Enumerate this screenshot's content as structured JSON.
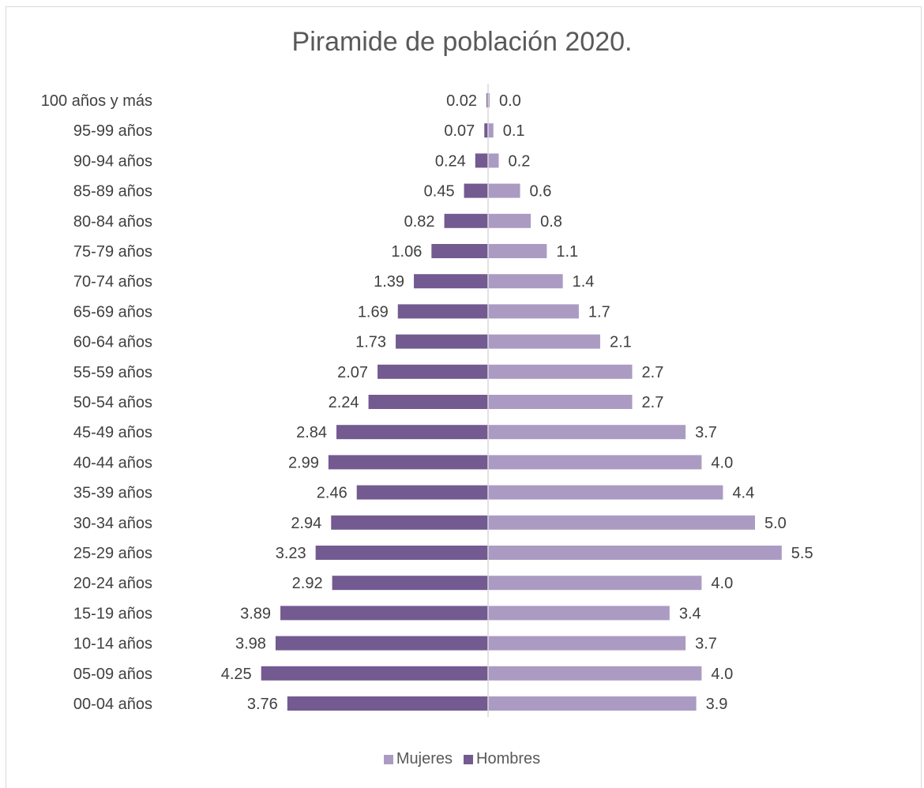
{
  "chart_data": {
    "type": "bar",
    "title": "Piramide de población 2020.",
    "orientation": "horizontal-pyramid",
    "categories": [
      "100 años y más",
      "95-99 años",
      "90-94 años",
      "85-89 años",
      "80-84 años",
      "75-79 años",
      "70-74 años",
      "65-69 años",
      "60-64 años",
      "55-59 años",
      "50-54 años",
      "45-49 años",
      "40-44 años",
      "35-39 años",
      "30-34 años",
      "25-29 años",
      "20-24 años",
      "15-19 años",
      "10-14 años",
      "05-09 años",
      "00-04 años"
    ],
    "series": [
      {
        "name": "Hombres",
        "side": "left",
        "color": "#735a91",
        "values": [
          0.02,
          0.07,
          0.24,
          0.45,
          0.82,
          1.06,
          1.39,
          1.69,
          1.73,
          2.07,
          2.24,
          2.84,
          2.99,
          2.46,
          2.94,
          3.23,
          2.92,
          3.89,
          3.98,
          4.25,
          3.76
        ],
        "labels": [
          "0.02",
          "0.07",
          "0.24",
          "0.45",
          "0.82",
          "1.06",
          "1.39",
          "1.69",
          "1.73",
          "2.07",
          "2.24",
          "2.84",
          "2.99",
          "2.46",
          "2.94",
          "3.23",
          "2.92",
          "3.89",
          "3.98",
          "4.25",
          "3.76"
        ]
      },
      {
        "name": "Mujeres",
        "side": "right",
        "color": "#ab9bc3",
        "values": [
          0.0,
          0.1,
          0.2,
          0.6,
          0.8,
          1.1,
          1.4,
          1.7,
          2.1,
          2.7,
          2.7,
          3.7,
          4.0,
          4.4,
          5.0,
          5.5,
          4.0,
          3.4,
          3.7,
          4.0,
          3.9
        ],
        "labels": [
          "0.0",
          "0.1",
          "0.2",
          "0.6",
          "0.8",
          "1.1",
          "1.4",
          "1.7",
          "2.1",
          "2.7",
          "2.7",
          "3.7",
          "4.0",
          "4.4",
          "5.0",
          "5.5",
          "4.0",
          "3.4",
          "3.7",
          "4.0",
          "3.9"
        ]
      }
    ],
    "legend": {
      "placement": "bottom",
      "order": [
        "Mujeres",
        "Hombres"
      ]
    },
    "grid": false,
    "axis_line_color": "#d9d9d9",
    "label_color": "#404040"
  }
}
